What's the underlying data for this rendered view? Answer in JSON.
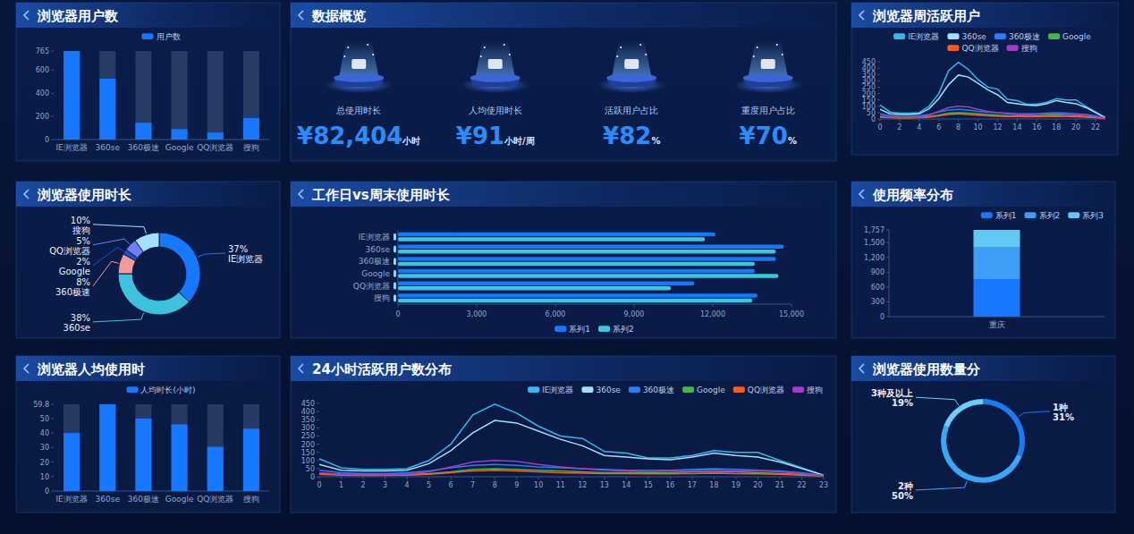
{
  "chart_data": [
    {
      "type": "bar",
      "title": "浏览器用户数",
      "categories": [
        "IE浏览器",
        "360se",
        "360极速",
        "Google",
        "QQ浏览器",
        "搜狗"
      ],
      "series": [
        {
          "name": "用户数",
          "color": "#1677ff",
          "values": [
            765,
            525,
            145,
            90,
            60,
            185
          ]
        }
      ],
      "ylim": [
        0,
        765
      ],
      "yticks": [
        0,
        200,
        400,
        600,
        765
      ],
      "legend": "top"
    },
    {
      "type": "line",
      "title": "浏览器周活跃用户",
      "x": [
        0,
        1,
        2,
        3,
        4,
        5,
        6,
        7,
        8,
        9,
        10,
        11,
        12,
        13,
        14,
        15,
        16,
        17,
        18,
        19,
        20,
        21,
        22,
        23
      ],
      "series": [
        {
          "name": "IE浏览器",
          "color": "#37b6f0",
          "values": [
            110,
            55,
            45,
            45,
            50,
            100,
            200,
            380,
            445,
            390,
            310,
            250,
            235,
            155,
            145,
            115,
            115,
            130,
            160,
            150,
            150,
            100,
            55,
            10
          ]
        },
        {
          "name": "360se",
          "color": "#9fe0ff",
          "values": [
            75,
            40,
            35,
            35,
            40,
            80,
            160,
            270,
            345,
            330,
            280,
            230,
            190,
            130,
            120,
            110,
            105,
            120,
            145,
            130,
            120,
            90,
            50,
            10
          ]
        },
        {
          "name": "360极速",
          "color": "#2a7ef5",
          "values": [
            40,
            25,
            20,
            20,
            25,
            35,
            55,
            70,
            75,
            70,
            60,
            55,
            50,
            45,
            40,
            40,
            40,
            45,
            50,
            45,
            40,
            35,
            25,
            8
          ]
        },
        {
          "name": "Google",
          "color": "#43b649",
          "values": [
            20,
            15,
            12,
            12,
            15,
            20,
            30,
            45,
            50,
            45,
            40,
            35,
            30,
            25,
            25,
            25,
            25,
            30,
            30,
            30,
            25,
            20,
            15,
            5
          ]
        },
        {
          "name": "QQ浏览器",
          "color": "#ff5a1f",
          "values": [
            15,
            10,
            8,
            8,
            10,
            15,
            25,
            35,
            40,
            35,
            30,
            25,
            22,
            20,
            20,
            18,
            18,
            20,
            22,
            20,
            18,
            15,
            10,
            5
          ]
        },
        {
          "name": "搜狗",
          "color": "#a23bc9",
          "values": [
            25,
            15,
            12,
            12,
            15,
            30,
            60,
            90,
            100,
            95,
            75,
            60,
            50,
            40,
            35,
            30,
            35,
            40,
            40,
            35,
            35,
            30,
            20,
            5
          ]
        }
      ],
      "xlim": [
        0,
        23
      ],
      "xticks": [
        0,
        2,
        4,
        6,
        8,
        10,
        12,
        14,
        16,
        18,
        20,
        22
      ],
      "ylim": [
        0,
        450
      ],
      "yticks": [
        0,
        50,
        100,
        150,
        200,
        250,
        300,
        350,
        400,
        450
      ],
      "legend": "top"
    },
    {
      "type": "pie",
      "title": "浏览器使用时长",
      "categories": [
        "IE浏览器",
        "360se",
        "360极速",
        "Google",
        "QQ浏览器",
        "搜狗"
      ],
      "values": [
        37,
        38,
        8,
        2,
        5,
        10
      ],
      "value_labels": [
        "37%",
        "38%",
        "8%",
        "2%",
        "5%",
        "10%"
      ],
      "colors": [
        "#1677ff",
        "#3ec1dd",
        "#f49a9a",
        "#1a56c7",
        "#6f7ef5",
        "#a5e0ff"
      ],
      "data_labels": true
    },
    {
      "type": "bar",
      "orientation": "horizontal",
      "title": "工作日vs周末使用时长",
      "categories": [
        "IE浏览器",
        "360se",
        "360极速",
        "Google",
        "QQ浏览器",
        "搜狗"
      ],
      "series": [
        {
          "name": "系列1",
          "color": "#1677ff",
          "values": [
            12100,
            14700,
            14400,
            13600,
            11300,
            13700
          ]
        },
        {
          "name": "系列2",
          "color": "#3ec6e0",
          "values": [
            11700,
            14400,
            13600,
            14500,
            10400,
            13500
          ]
        }
      ],
      "xlim": [
        0,
        15000
      ],
      "xticks": [
        0,
        {
          "value": 3000,
          "label": "3,000"
        },
        {
          "value": 6000,
          "label": "6,000"
        },
        {
          "value": 9000,
          "label": "9,000"
        },
        {
          "value": 12000,
          "label": "12,000"
        },
        {
          "value": 15000,
          "label": "15,000"
        }
      ],
      "legend": "bottom"
    },
    {
      "type": "bar",
      "stacked": true,
      "title": "使用频率分布",
      "categories": [
        "重庆"
      ],
      "series": [
        {
          "name": "系列1",
          "color": "#1677ff",
          "values": [
            760
          ]
        },
        {
          "name": "系列2",
          "color": "#3d9ef5",
          "values": [
            640
          ]
        },
        {
          "name": "系列3",
          "color": "#62c9f5",
          "values": [
            357
          ]
        }
      ],
      "ylim": [
        0,
        1757
      ],
      "yticks": [
        0,
        300,
        600,
        900,
        {
          "value": 1200,
          "label": "1,200"
        },
        {
          "value": 1500,
          "label": "1,500"
        },
        {
          "value": 1757,
          "label": "1,757"
        }
      ],
      "legend": "top-right"
    },
    {
      "type": "bar",
      "title": "浏览器人均使用时",
      "categories": [
        "IE浏览器",
        "360se",
        "360极速",
        "Google",
        "QQ浏览器",
        "搜狗"
      ],
      "series": [
        {
          "name": "人均时长(小时)",
          "color": "#1677ff",
          "values": [
            40,
            59.8,
            50,
            46,
            30.5,
            43
          ]
        }
      ],
      "ylim": [
        0,
        59.8
      ],
      "yticks": [
        0,
        10,
        20,
        30,
        40,
        50,
        59.8
      ],
      "legend": "top"
    },
    {
      "type": "line",
      "title": "24小时活跃用户数分布",
      "x": [
        0,
        1,
        2,
        3,
        4,
        5,
        6,
        7,
        8,
        9,
        10,
        11,
        12,
        13,
        14,
        15,
        16,
        17,
        18,
        19,
        20,
        21,
        22,
        23
      ],
      "series": [
        {
          "name": "IE浏览器",
          "color": "#37b6f0",
          "values": [
            110,
            55,
            45,
            45,
            50,
            100,
            200,
            380,
            445,
            390,
            310,
            250,
            235,
            155,
            145,
            115,
            115,
            130,
            160,
            150,
            150,
            100,
            55,
            10
          ]
        },
        {
          "name": "360se",
          "color": "#9fe0ff",
          "values": [
            75,
            40,
            35,
            35,
            40,
            80,
            160,
            270,
            345,
            330,
            280,
            230,
            190,
            130,
            120,
            110,
            105,
            120,
            145,
            130,
            120,
            90,
            50,
            10
          ]
        },
        {
          "name": "360极速",
          "color": "#2a7ef5",
          "values": [
            40,
            25,
            20,
            20,
            25,
            35,
            55,
            70,
            75,
            70,
            60,
            55,
            50,
            45,
            40,
            40,
            40,
            45,
            50,
            45,
            40,
            35,
            25,
            8
          ]
        },
        {
          "name": "Google",
          "color": "#43b649",
          "values": [
            20,
            15,
            12,
            12,
            15,
            20,
            30,
            45,
            50,
            45,
            40,
            35,
            30,
            25,
            25,
            25,
            25,
            30,
            30,
            30,
            25,
            20,
            15,
            5
          ]
        },
        {
          "name": "QQ浏览器",
          "color": "#ff5a1f",
          "values": [
            15,
            10,
            8,
            8,
            10,
            15,
            25,
            35,
            40,
            35,
            30,
            25,
            22,
            20,
            20,
            18,
            18,
            20,
            22,
            20,
            18,
            15,
            10,
            5
          ]
        },
        {
          "name": "搜狗",
          "color": "#a23bc9",
          "values": [
            25,
            15,
            12,
            12,
            15,
            30,
            60,
            90,
            100,
            95,
            75,
            60,
            50,
            40,
            35,
            30,
            35,
            40,
            40,
            35,
            35,
            30,
            20,
            5
          ]
        }
      ],
      "xlim": [
        0,
        23
      ],
      "xticks": [
        0,
        1,
        2,
        3,
        4,
        5,
        6,
        7,
        8,
        9,
        10,
        11,
        12,
        13,
        14,
        15,
        16,
        17,
        18,
        19,
        20,
        21,
        22,
        23
      ],
      "ylim": [
        0,
        450
      ],
      "yticks": [
        0,
        50,
        100,
        150,
        200,
        250,
        300,
        350,
        400,
        450
      ],
      "legend": "top-right"
    },
    {
      "type": "pie",
      "title": "浏览器使用数量分",
      "categories": [
        "1种",
        "2种",
        "3种及以上"
      ],
      "values": [
        31,
        50,
        19
      ],
      "value_labels": [
        "31%",
        "50%",
        "19%"
      ],
      "colors": [
        "#1a7cf5",
        "#39a6f7",
        "#6ccdf7"
      ],
      "data_labels": true
    }
  ],
  "overview": {
    "title": "数据概览",
    "items": [
      {
        "label": "总使用时长",
        "prefix": "¥",
        "value": "82,404",
        "unit": "小时"
      },
      {
        "label": "人均使用时长",
        "prefix": "¥",
        "value": "91",
        "unit": "小时/周"
      },
      {
        "label": "活跃用户占比",
        "prefix": "¥",
        "value": "82",
        "unit": "%"
      },
      {
        "label": "重度用户占比",
        "prefix": "¥",
        "value": "70",
        "unit": "%"
      }
    ]
  }
}
